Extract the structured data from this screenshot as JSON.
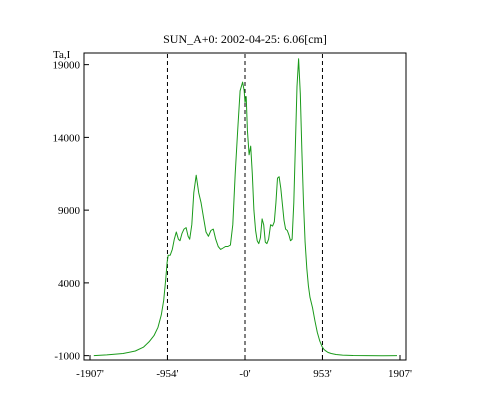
{
  "chart_data": {
    "type": "line",
    "title": "SUN_A+0: 2002-04-25: 6.06[cm]",
    "ylabel": "Ta,I",
    "xlabel": "",
    "xlim": [
      -1907,
      1907
    ],
    "ylim": [
      -1300,
      19800
    ],
    "x_ticks": [
      -1907,
      -954,
      0,
      953,
      1907
    ],
    "x_tick_labels": [
      "-1907'",
      "-954'",
      "-0'",
      "953'",
      "1907'"
    ],
    "y_ticks": [
      -1000,
      4000,
      9000,
      14000,
      19000
    ],
    "y_tick_labels": [
      "-1000",
      "4000",
      "9000",
      "14000",
      "19000"
    ],
    "vlines": [
      -954,
      0,
      953
    ],
    "grid": false,
    "line_color": "#1a9a1a",
    "series": [
      {
        "x": [
          -1860,
          -1700,
          -1500,
          -1350,
          -1250,
          -1180,
          -1120,
          -1070,
          -1030,
          -1000,
          -975,
          -958,
          -945,
          -920,
          -895,
          -870,
          -845,
          -820,
          -800,
          -775,
          -750,
          -725,
          -700,
          -680,
          -655,
          -630,
          -600,
          -570,
          -540,
          -510,
          -480,
          -450,
          -420,
          -390,
          -360,
          -330,
          -300,
          -270,
          -240,
          -210,
          -180,
          -150,
          -120,
          -90,
          -60,
          -30,
          -10,
          0,
          15,
          30,
          50,
          70,
          90,
          110,
          130,
          150,
          170,
          190,
          210,
          230,
          250,
          270,
          290,
          315,
          340,
          360,
          380,
          400,
          420,
          440,
          460,
          480,
          500,
          520,
          540,
          560,
          580,
          600,
          620,
          640,
          660,
          680,
          700,
          720,
          740,
          760,
          780,
          800,
          830,
          860,
          890,
          920,
          950,
          970,
          990,
          1020,
          1060,
          1120,
          1200,
          1330,
          1500,
          1700,
          1870
        ],
        "y": [
          -1000,
          -950,
          -850,
          -680,
          -420,
          -50,
          380,
          950,
          1800,
          2800,
          4300,
          5400,
          5900,
          5900,
          6300,
          7000,
          7500,
          7000,
          6900,
          7400,
          7700,
          7800,
          7200,
          7000,
          8000,
          10200,
          11400,
          10200,
          9500,
          8500,
          7500,
          7200,
          7600,
          7700,
          7000,
          6500,
          6300,
          6400,
          6500,
          6500,
          6600,
          8000,
          11500,
          14500,
          17200,
          17800,
          17200,
          16400,
          16800,
          14500,
          12800,
          13400,
          11500,
          9000,
          7600,
          6900,
          6700,
          7100,
          8400,
          8000,
          6800,
          6700,
          7000,
          8000,
          7900,
          8200,
          9500,
          11200,
          11300,
          10500,
          9400,
          8300,
          7700,
          7600,
          7300,
          6900,
          7000,
          9500,
          13500,
          17500,
          19400,
          17000,
          13000,
          9500,
          6800,
          5000,
          3800,
          3000,
          2300,
          1400,
          600,
          0,
          -400,
          -560,
          -660,
          -780,
          -850,
          -920,
          -960,
          -990,
          -1000,
          -1010,
          -1000
        ]
      }
    ]
  }
}
